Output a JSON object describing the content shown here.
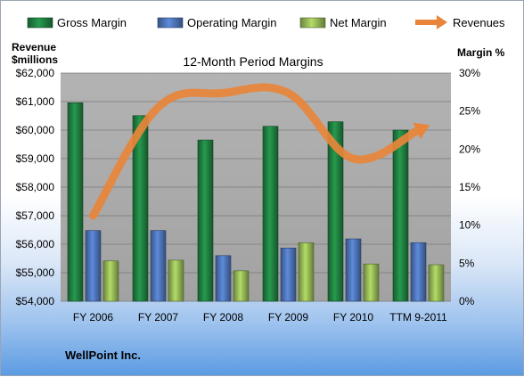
{
  "chart_data": {
    "type": "bar",
    "title": "12-Month Period Margins",
    "categories": [
      "FY 2006",
      "FY 2007",
      "FY 2008",
      "FY 2009",
      "FY 2010",
      "TTM 9-2011"
    ],
    "series": [
      {
        "name": "Gross Margin",
        "axis": "right",
        "values": [
          26.1,
          24.4,
          21.2,
          23.0,
          23.6,
          22.5
        ],
        "color": "#1e7b3e"
      },
      {
        "name": "Operating Margin",
        "axis": "right",
        "values": [
          9.3,
          9.3,
          6.0,
          7.0,
          8.2,
          7.7
        ],
        "color": "#4a6fb0"
      },
      {
        "name": "Net Margin",
        "axis": "right",
        "values": [
          5.3,
          5.4,
          4.0,
          7.7,
          4.9,
          4.8
        ],
        "color": "#8fb052"
      }
    ],
    "line_series": {
      "name": "Revenues",
      "axis": "left",
      "values": [
        57000,
        60800,
        61300,
        61300,
        59000,
        60000
      ],
      "color": "#e8853a"
    },
    "left_axis": {
      "label_line1": "Revenue",
      "label_line2": "$millions",
      "ylim": [
        54000,
        62000
      ],
      "ticks": [
        "$54,000",
        "$55,000",
        "$56,000",
        "$57,000",
        "$58,000",
        "$59,000",
        "$60,000",
        "$61,000",
        "$62,000"
      ]
    },
    "right_axis": {
      "label": "Margin %",
      "ylim": [
        0,
        30
      ],
      "ticks": [
        "0%",
        "5%",
        "10%",
        "15%",
        "20%",
        "25%",
        "30%"
      ]
    },
    "legend": [
      "Gross Margin",
      "Operating Margin",
      "Net Margin",
      "Revenues"
    ],
    "legend_position": "top",
    "grid": true
  },
  "footer": {
    "company": "WellPoint Inc."
  },
  "colors": {
    "plot_background": "#a9a9a9",
    "gridline": "#7a7a7a"
  }
}
